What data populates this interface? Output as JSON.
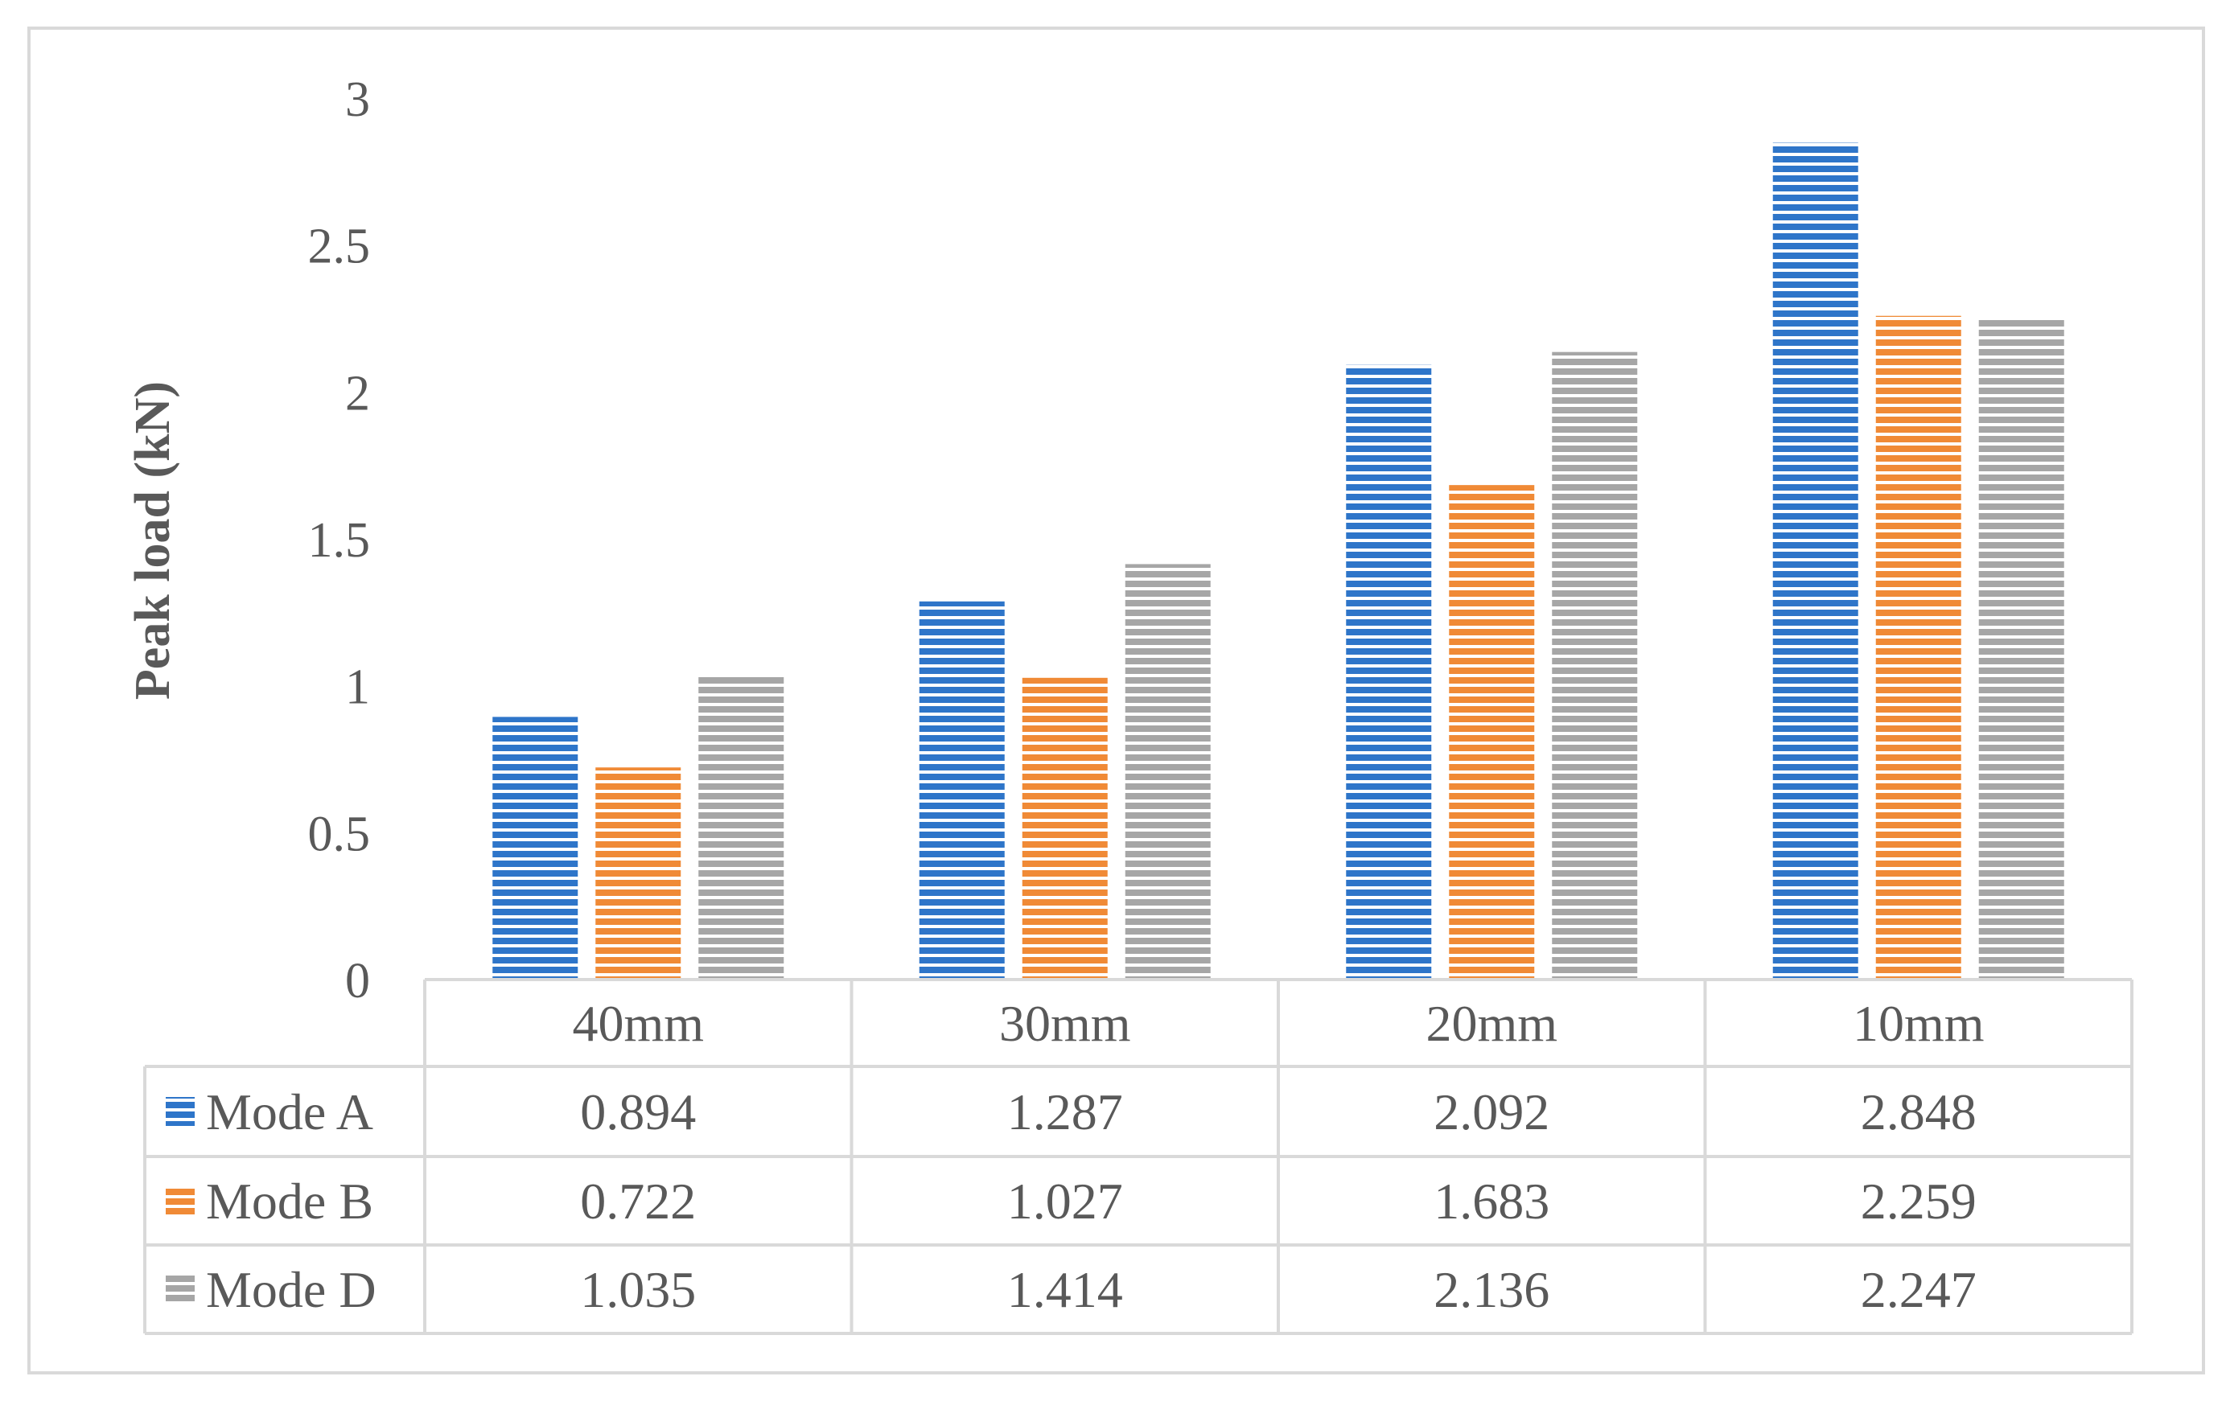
{
  "chart_data": {
    "type": "bar",
    "title": "",
    "xlabel": "",
    "ylabel": "Peak load (kN)",
    "ylim": [
      0,
      3
    ],
    "yticks": [
      0,
      0.5,
      1,
      1.5,
      2,
      2.5,
      3
    ],
    "grid": false,
    "legend": "data-table",
    "categories": [
      "40mm",
      "30mm",
      "20mm",
      "10mm"
    ],
    "series": [
      {
        "name": "Mode A",
        "color": "#2e75c9",
        "values": [
          0.894,
          1.287,
          2.092,
          2.848
        ]
      },
      {
        "name": "Mode B",
        "color": "#f08a36",
        "values": [
          0.722,
          1.027,
          1.683,
          2.259
        ]
      },
      {
        "name": "Mode D",
        "color": "#a6a6a6",
        "values": [
          1.035,
          1.414,
          2.136,
          2.247
        ]
      }
    ],
    "table_values": [
      [
        "0.894",
        "1.287",
        "2.092",
        "2.848"
      ],
      [
        "0.722",
        "1.027",
        "1.683",
        "2.259"
      ],
      [
        "1.035",
        "1.414",
        "2.136",
        "2.247"
      ]
    ]
  }
}
